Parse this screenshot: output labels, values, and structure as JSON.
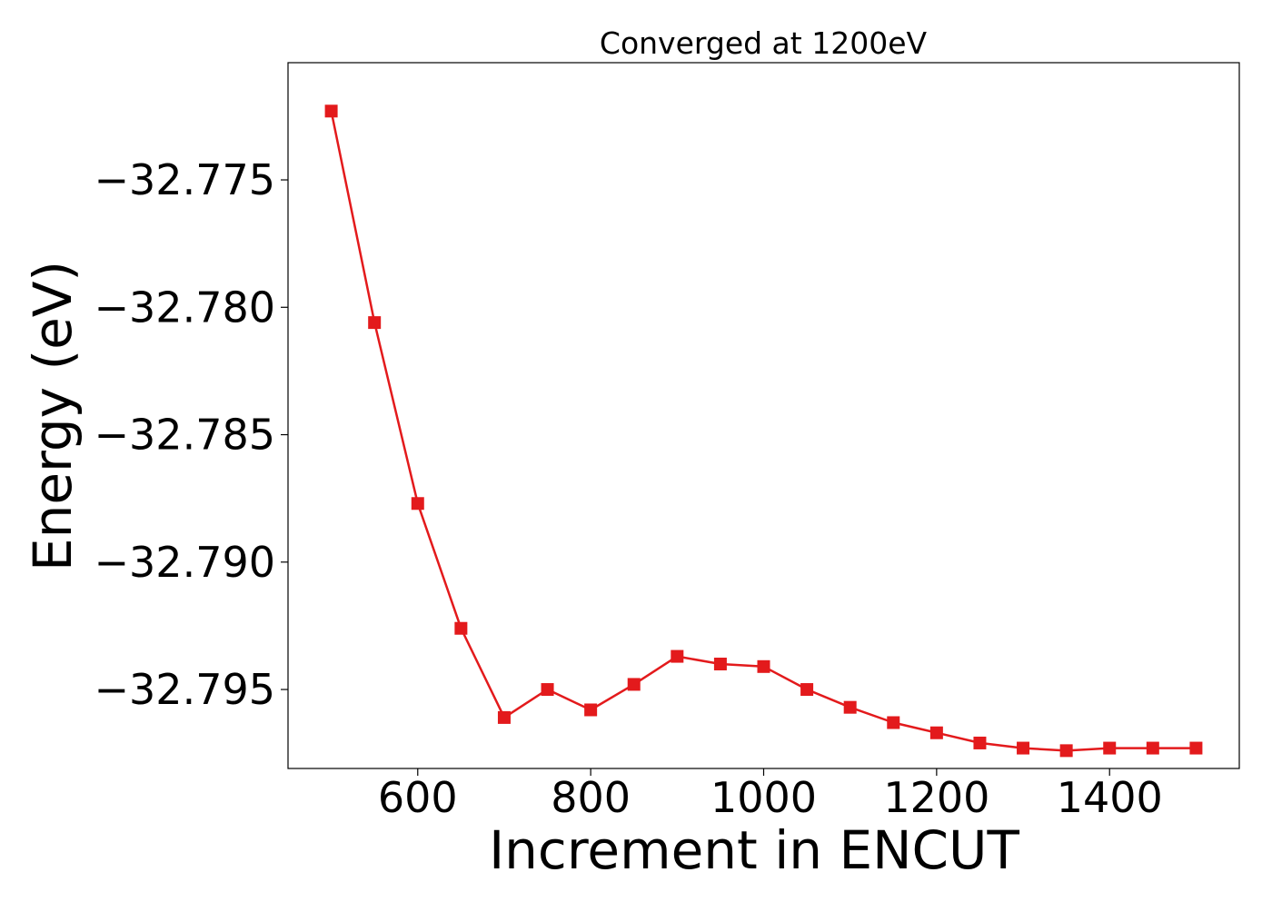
{
  "chart_data": {
    "type": "line",
    "title": "Converged at 1200eV",
    "xlabel": "Increment in ENCUT",
    "ylabel": "Energy (eV)",
    "xlim": [
      450,
      1550
    ],
    "ylim": [
      -32.7981,
      -32.7704
    ],
    "xticks": [
      600,
      800,
      1000,
      1200,
      1400
    ],
    "xtick_labels": [
      "600",
      "800",
      "1000",
      "1200",
      "1400"
    ],
    "yticks": [
      -32.775,
      -32.78,
      -32.785,
      -32.79,
      -32.795
    ],
    "ytick_labels": [
      "−32.775",
      "−32.780",
      "−32.785",
      "−32.790",
      "−32.795"
    ],
    "grid": false,
    "legend": "none",
    "series": [
      {
        "color": "#e31a1c",
        "marker": "square",
        "x": [
          500,
          550,
          600,
          650,
          700,
          750,
          800,
          850,
          900,
          950,
          1000,
          1050,
          1100,
          1150,
          1200,
          1250,
          1300,
          1350,
          1400,
          1450,
          1500
        ],
        "y": [
          -32.7723,
          -32.7806,
          -32.7877,
          -32.7926,
          -32.7961,
          -32.795,
          -32.7958,
          -32.7948,
          -32.7937,
          -32.794,
          -32.7941,
          -32.795,
          -32.7957,
          -32.7963,
          -32.7967,
          -32.7971,
          -32.7973,
          -32.7974,
          -32.7973,
          -32.7973,
          -32.7973
        ]
      }
    ]
  }
}
